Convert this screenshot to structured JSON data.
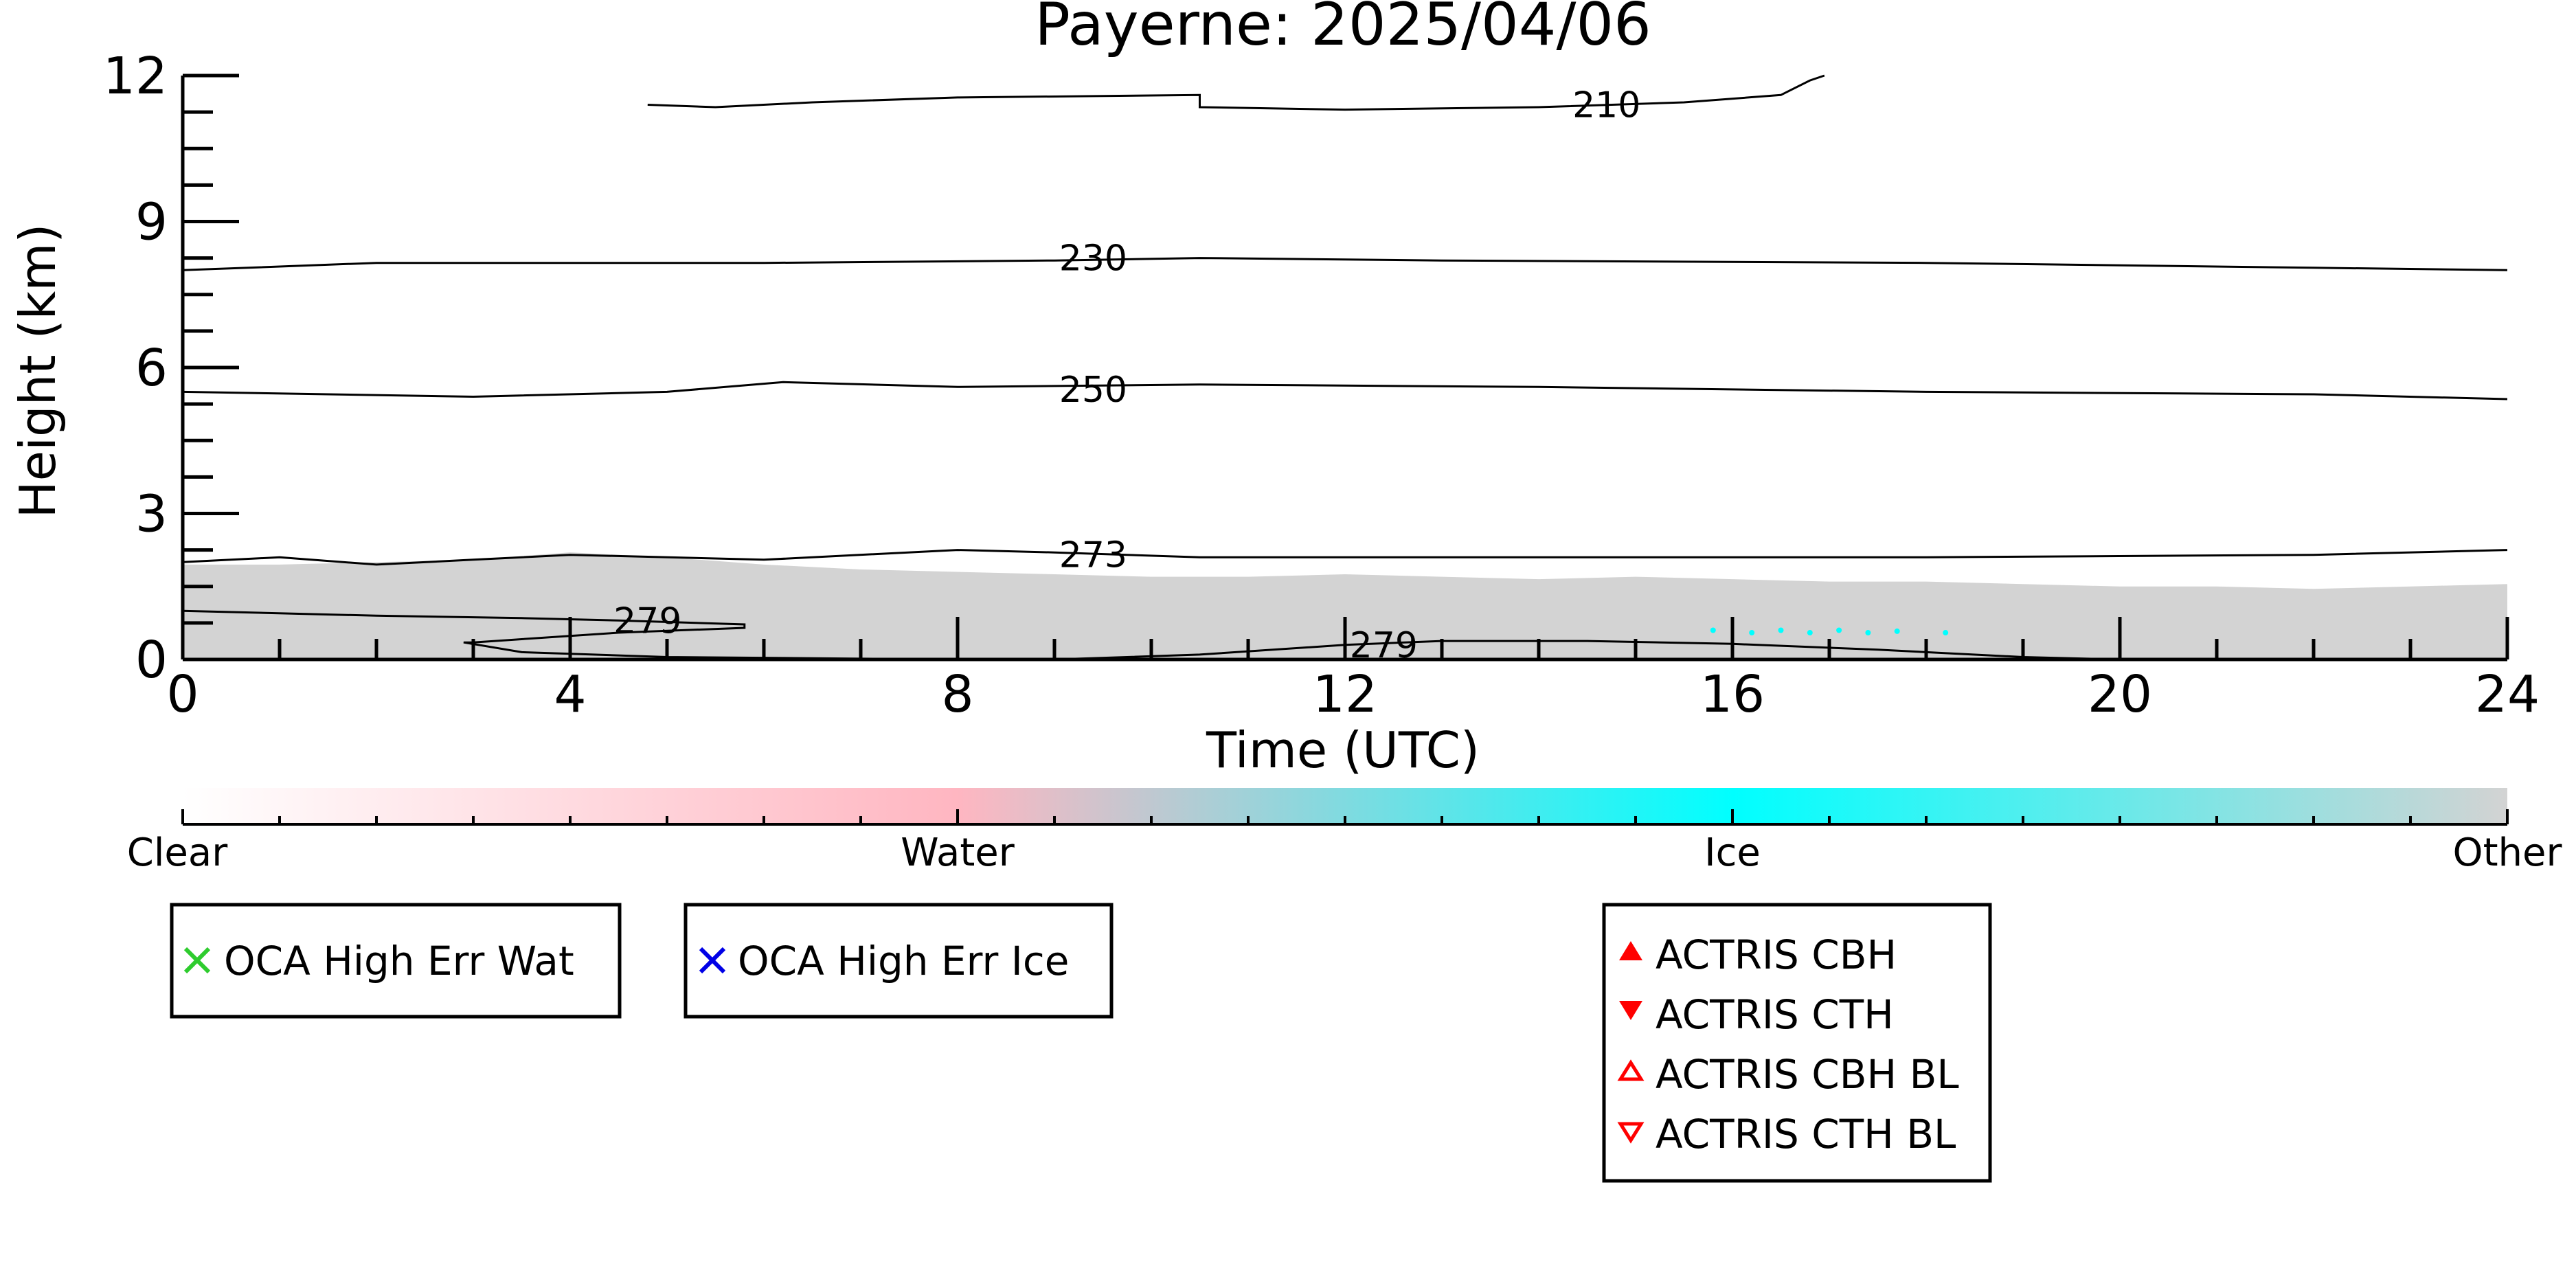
{
  "title": "Payerne: 2025/04/06",
  "chart_data": {
    "type": "heatmap",
    "title": "Payerne: 2025/04/06",
    "xlabel": "Time (UTC)",
    "ylabel": "Height (km)",
    "xlim": [
      0,
      24
    ],
    "ylim": [
      0,
      12
    ],
    "x_major_ticks": [
      0,
      4,
      8,
      12,
      16,
      20,
      24
    ],
    "y_major_ticks": [
      0,
      3,
      6,
      9,
      12
    ],
    "x_minor_step": 1,
    "y_minor_step": 0.75,
    "grid": false,
    "shading": [
      {
        "class": "Other",
        "color": "#d3d3d3",
        "top": [
          [
            0,
            1.95
          ],
          [
            1,
            1.95
          ],
          [
            2,
            2.0
          ],
          [
            3,
            2.05
          ],
          [
            4,
            2.2
          ],
          [
            5,
            2.1
          ],
          [
            6,
            1.95
          ],
          [
            7,
            1.85
          ],
          [
            8,
            1.8
          ],
          [
            9,
            1.75
          ],
          [
            10,
            1.7
          ],
          [
            11,
            1.7
          ],
          [
            12,
            1.75
          ],
          [
            13,
            1.7
          ],
          [
            14,
            1.65
          ],
          [
            15,
            1.7
          ],
          [
            16,
            1.65
          ],
          [
            17,
            1.6
          ],
          [
            18,
            1.6
          ],
          [
            19,
            1.55
          ],
          [
            20,
            1.5
          ],
          [
            21,
            1.5
          ],
          [
            22,
            1.45
          ],
          [
            23,
            1.5
          ],
          [
            24,
            1.55
          ]
        ]
      }
    ],
    "ice_points": [
      [
        15.8,
        0.6
      ],
      [
        16.2,
        0.55
      ],
      [
        16.5,
        0.6
      ],
      [
        16.8,
        0.55
      ],
      [
        17.1,
        0.6
      ],
      [
        17.4,
        0.55
      ],
      [
        17.7,
        0.58
      ],
      [
        18.2,
        0.55
      ]
    ],
    "contours": [
      {
        "label": "210",
        "label_at": [
          14.7,
          11.4
        ],
        "points": [
          [
            4.8,
            11.4
          ],
          [
            5.5,
            11.35
          ],
          [
            6.5,
            11.45
          ],
          [
            8,
            11.55
          ],
          [
            10.5,
            11.6
          ],
          [
            10.5,
            11.35
          ],
          [
            12,
            11.3
          ],
          [
            14,
            11.35
          ],
          [
            15.5,
            11.45
          ],
          [
            16.5,
            11.6
          ],
          [
            16.8,
            11.9
          ],
          [
            16.95,
            12.0
          ]
        ]
      },
      {
        "label": "230",
        "label_at": [
          9.4,
          8.25
        ],
        "points": [
          [
            0,
            8.0
          ],
          [
            2,
            8.15
          ],
          [
            4,
            8.15
          ],
          [
            6,
            8.15
          ],
          [
            9,
            8.2
          ],
          [
            10.5,
            8.25
          ],
          [
            13,
            8.2
          ],
          [
            18,
            8.15
          ],
          [
            22,
            8.05
          ],
          [
            24,
            8.0
          ]
        ]
      },
      {
        "label": "250",
        "label_at": [
          9.4,
          5.55
        ],
        "points": [
          [
            0,
            5.5
          ],
          [
            3,
            5.4
          ],
          [
            5,
            5.5
          ],
          [
            6.2,
            5.7
          ],
          [
            8,
            5.6
          ],
          [
            10.5,
            5.65
          ],
          [
            14,
            5.6
          ],
          [
            18,
            5.5
          ],
          [
            22,
            5.45
          ],
          [
            24,
            5.35
          ]
        ]
      },
      {
        "label": "273",
        "label_at": [
          9.4,
          2.15
        ],
        "points": [
          [
            0,
            2.0
          ],
          [
            1,
            2.1
          ],
          [
            2,
            1.95
          ],
          [
            3,
            2.05
          ],
          [
            4,
            2.15
          ],
          [
            6,
            2.05
          ],
          [
            8,
            2.25
          ],
          [
            9,
            2.2
          ],
          [
            10.5,
            2.1
          ],
          [
            14,
            2.1
          ],
          [
            18,
            2.1
          ],
          [
            22,
            2.15
          ],
          [
            24,
            2.25
          ]
        ]
      },
      {
        "label": "279",
        "label_at": [
          4.8,
          0.8
        ],
        "points": [
          [
            0,
            1.0
          ],
          [
            2,
            0.9
          ],
          [
            3.5,
            0.85
          ],
          [
            4.5,
            0.8
          ],
          [
            5.8,
            0.72
          ],
          [
            5.8,
            0.65
          ],
          [
            4.5,
            0.55
          ],
          [
            3,
            0.35
          ],
          [
            2.9,
            0.35
          ],
          [
            3.5,
            0.15
          ],
          [
            5,
            0.05
          ],
          [
            8,
            0.0
          ]
        ]
      },
      {
        "label": "279",
        "label_at": [
          12.4,
          0.3
        ],
        "points": [
          [
            9,
            0.0
          ],
          [
            10.5,
            0.1
          ],
          [
            12,
            0.3
          ],
          [
            13,
            0.38
          ],
          [
            14.5,
            0.38
          ],
          [
            16,
            0.32
          ],
          [
            17.5,
            0.2
          ],
          [
            19,
            0.05
          ],
          [
            20,
            0.0
          ]
        ]
      }
    ]
  },
  "colorbar": {
    "labels": [
      "Clear",
      "Water",
      "Ice",
      "Other"
    ],
    "colors": {
      "clear": "#ffffff",
      "water": "#ffb6c1",
      "ice": "#00ffff",
      "other": "#d3d3d3"
    }
  },
  "legends": [
    {
      "items": [
        {
          "label": "OCA High Err Wat",
          "marker": "x",
          "color": "#2ecc2e"
        }
      ]
    },
    {
      "items": [
        {
          "label": "OCA High Err Ice",
          "marker": "x",
          "color": "#0000e6"
        }
      ]
    },
    {
      "items": [
        {
          "label": "ACTRIS CBH",
          "marker": "triangle-up-filled",
          "color": "#ff0000"
        },
        {
          "label": "ACTRIS CTH",
          "marker": "triangle-down-filled",
          "color": "#ff0000"
        },
        {
          "label": "ACTRIS CBH BL",
          "marker": "triangle-up-open",
          "color": "#ff0000"
        },
        {
          "label": "ACTRIS CTH BL",
          "marker": "triangle-down-open",
          "color": "#ff0000"
        }
      ]
    }
  ]
}
